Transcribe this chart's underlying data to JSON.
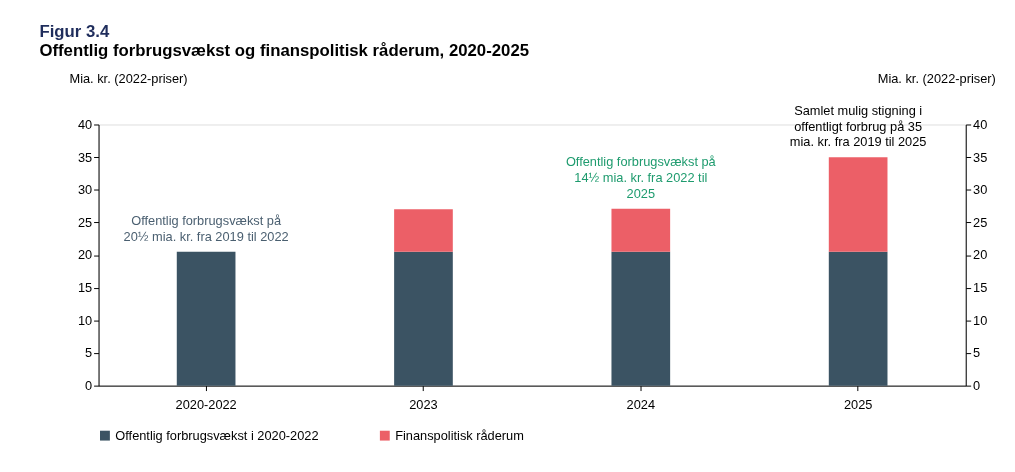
{
  "chart_data": {
    "type": "bar",
    "title": "Figur 3.4",
    "subtitle": "Offentlig forbrugsvækst og finanspolitisk råderum, 2020-2025",
    "ylabel": "Mia. kr. (2022-priser)",
    "y2label": "Mia. kr. (2022-priser)",
    "categories": [
      "2020-2022",
      "2023",
      "2024",
      "2025"
    ],
    "stacked": true,
    "series": [
      {
        "name": "Offentlig forbrugsvækst i 2020-2022",
        "color": "#3b5363",
        "values": [
          20.5,
          20.5,
          20.5,
          20.5
        ]
      },
      {
        "name": "Finanspolitisk råderum",
        "color": "#ec5f67",
        "values": [
          null,
          6.5,
          6.6,
          14.5
        ]
      }
    ],
    "ylim": [
      0,
      40
    ],
    "yticks": [
      0,
      5,
      10,
      15,
      20,
      25,
      30,
      35,
      40
    ],
    "y2lim": [
      0,
      40
    ],
    "y2ticks": [
      0,
      5,
      10,
      15,
      20,
      25,
      30,
      35,
      40
    ],
    "annotations": [
      {
        "text": "Offentlig forbrugsvækst på\n20½ mia. kr. fra 2019 til 2022",
        "x": "2020-2022",
        "y": 20.5
      },
      {
        "text": "Offentlig forbrugsvækst på\n14½ mia. kr. fra 2022 til\n2025",
        "x": "2024",
        "y": 27.1
      },
      {
        "text": "Samlet mulig stigning i\noffentligt forbrug på 35\nmia. kr. fra 2019 til 2025",
        "x": "2025",
        "y": 35
      }
    ],
    "legend": "bottom",
    "grid": false
  }
}
